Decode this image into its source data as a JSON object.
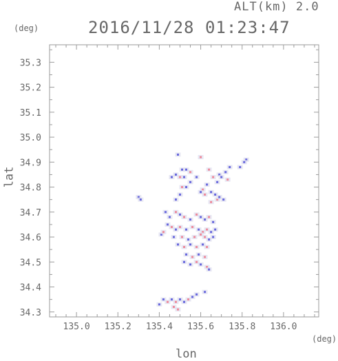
{
  "header": {
    "altitude_label": "ALT(km) 2.0",
    "timestamp": "2016/11/28 01:23:47"
  },
  "axis_units": {
    "y_unit": "(deg)",
    "x_unit": "(deg)"
  },
  "colors": {
    "frame": "#9a9a9a",
    "text": "#666666",
    "positive": "#ee8899",
    "negative": "#6666dd",
    "neutral": "#ddddee"
  },
  "chart_data": {
    "type": "scatter",
    "xlabel": "lon",
    "ylabel": "lat",
    "xlim": [
      134.87,
      136.17
    ],
    "ylim": [
      34.28,
      35.37
    ],
    "x_ticks": [
      "135.0",
      "135.2",
      "135.4",
      "135.6",
      "135.8",
      "136.0"
    ],
    "x_tick_values": [
      135.0,
      135.2,
      135.4,
      135.6,
      135.8,
      136.0
    ],
    "y_ticks": [
      "34.3",
      "34.4",
      "34.5",
      "34.6",
      "34.7",
      "34.8",
      "34.9",
      "35.0",
      "35.1",
      "35.2",
      "35.3"
    ],
    "y_tick_values": [
      34.3,
      34.4,
      34.5,
      34.6,
      34.7,
      34.8,
      34.9,
      35.0,
      35.1,
      35.2,
      35.3
    ],
    "grid": false,
    "points": [
      {
        "x": 135.49,
        "y": 34.93,
        "c": "neg"
      },
      {
        "x": 135.6,
        "y": 34.92,
        "c": "pos"
      },
      {
        "x": 135.82,
        "y": 34.91,
        "c": "neg"
      },
      {
        "x": 135.81,
        "y": 34.9,
        "c": "neg"
      },
      {
        "x": 135.79,
        "y": 34.88,
        "c": "neg"
      },
      {
        "x": 135.74,
        "y": 34.88,
        "c": "neg"
      },
      {
        "x": 135.51,
        "y": 34.87,
        "c": "neg"
      },
      {
        "x": 135.53,
        "y": 34.87,
        "c": "neg"
      },
      {
        "x": 135.55,
        "y": 34.86,
        "c": "pos"
      },
      {
        "x": 135.64,
        "y": 34.87,
        "c": "pos"
      },
      {
        "x": 135.48,
        "y": 34.85,
        "c": "neg"
      },
      {
        "x": 135.46,
        "y": 34.84,
        "c": "neg"
      },
      {
        "x": 135.5,
        "y": 34.84,
        "c": "pos"
      },
      {
        "x": 135.52,
        "y": 34.84,
        "c": "neg"
      },
      {
        "x": 135.58,
        "y": 34.84,
        "c": "neg"
      },
      {
        "x": 135.66,
        "y": 34.84,
        "c": "pos"
      },
      {
        "x": 135.69,
        "y": 34.85,
        "c": "neg"
      },
      {
        "x": 135.7,
        "y": 34.84,
        "c": "neg"
      },
      {
        "x": 135.72,
        "y": 34.86,
        "c": "neg"
      },
      {
        "x": 135.73,
        "y": 34.83,
        "c": "pos"
      },
      {
        "x": 135.68,
        "y": 34.82,
        "c": "neg"
      },
      {
        "x": 135.63,
        "y": 34.81,
        "c": "neg"
      },
      {
        "x": 135.61,
        "y": 34.79,
        "c": "pos"
      },
      {
        "x": 135.6,
        "y": 34.78,
        "c": "neg"
      },
      {
        "x": 135.62,
        "y": 34.77,
        "c": "pos"
      },
      {
        "x": 135.65,
        "y": 34.78,
        "c": "neg"
      },
      {
        "x": 135.67,
        "y": 34.77,
        "c": "neg"
      },
      {
        "x": 135.68,
        "y": 34.75,
        "c": "pos"
      },
      {
        "x": 135.69,
        "y": 34.76,
        "c": "neg"
      },
      {
        "x": 135.65,
        "y": 34.74,
        "c": "pos"
      },
      {
        "x": 135.71,
        "y": 34.75,
        "c": "neg"
      },
      {
        "x": 135.55,
        "y": 34.82,
        "c": "neg"
      },
      {
        "x": 135.53,
        "y": 34.8,
        "c": "neg"
      },
      {
        "x": 135.51,
        "y": 34.8,
        "c": "pos"
      },
      {
        "x": 135.5,
        "y": 34.77,
        "c": "neg"
      },
      {
        "x": 135.48,
        "y": 34.75,
        "c": "neg"
      },
      {
        "x": 135.3,
        "y": 34.76,
        "c": "neg"
      },
      {
        "x": 135.31,
        "y": 34.75,
        "c": "neg"
      },
      {
        "x": 135.43,
        "y": 34.7,
        "c": "neg"
      },
      {
        "x": 135.45,
        "y": 34.68,
        "c": "neg"
      },
      {
        "x": 135.48,
        "y": 34.7,
        "c": "pos"
      },
      {
        "x": 135.5,
        "y": 34.69,
        "c": "neg"
      },
      {
        "x": 135.52,
        "y": 34.68,
        "c": "pos"
      },
      {
        "x": 135.55,
        "y": 34.67,
        "c": "neg"
      },
      {
        "x": 135.58,
        "y": 34.69,
        "c": "pos"
      },
      {
        "x": 135.6,
        "y": 34.68,
        "c": "neg"
      },
      {
        "x": 135.62,
        "y": 34.67,
        "c": "neg"
      },
      {
        "x": 135.64,
        "y": 34.68,
        "c": "pos"
      },
      {
        "x": 135.66,
        "y": 34.66,
        "c": "neg"
      },
      {
        "x": 135.44,
        "y": 34.65,
        "c": "neg"
      },
      {
        "x": 135.46,
        "y": 34.64,
        "c": "pos"
      },
      {
        "x": 135.48,
        "y": 34.63,
        "c": "neg"
      },
      {
        "x": 135.5,
        "y": 34.64,
        "c": "pos"
      },
      {
        "x": 135.53,
        "y": 34.63,
        "c": "neg"
      },
      {
        "x": 135.56,
        "y": 34.64,
        "c": "pos"
      },
      {
        "x": 135.59,
        "y": 34.63,
        "c": "neg"
      },
      {
        "x": 135.61,
        "y": 34.62,
        "c": "pos"
      },
      {
        "x": 135.63,
        "y": 34.63,
        "c": "pos"
      },
      {
        "x": 135.65,
        "y": 34.62,
        "c": "neg"
      },
      {
        "x": 135.67,
        "y": 34.63,
        "c": "neg"
      },
      {
        "x": 135.41,
        "y": 34.61,
        "c": "neg"
      },
      {
        "x": 135.42,
        "y": 34.62,
        "c": "pos"
      },
      {
        "x": 135.47,
        "y": 34.6,
        "c": "neg"
      },
      {
        "x": 135.51,
        "y": 34.6,
        "c": "pos"
      },
      {
        "x": 135.54,
        "y": 34.59,
        "c": "neg"
      },
      {
        "x": 135.57,
        "y": 34.6,
        "c": "pos"
      },
      {
        "x": 135.6,
        "y": 34.61,
        "c": "pos"
      },
      {
        "x": 135.62,
        "y": 34.6,
        "c": "pos"
      },
      {
        "x": 135.64,
        "y": 34.59,
        "c": "neg"
      },
      {
        "x": 135.66,
        "y": 34.6,
        "c": "neg"
      },
      {
        "x": 135.49,
        "y": 34.57,
        "c": "neg"
      },
      {
        "x": 135.52,
        "y": 34.56,
        "c": "pos"
      },
      {
        "x": 135.55,
        "y": 34.57,
        "c": "neg"
      },
      {
        "x": 135.58,
        "y": 34.56,
        "c": "pos"
      },
      {
        "x": 135.61,
        "y": 34.57,
        "c": "neg"
      },
      {
        "x": 135.63,
        "y": 34.56,
        "c": "pos"
      },
      {
        "x": 135.53,
        "y": 34.53,
        "c": "neg"
      },
      {
        "x": 135.56,
        "y": 34.52,
        "c": "pos"
      },
      {
        "x": 135.59,
        "y": 34.53,
        "c": "neg"
      },
      {
        "x": 135.62,
        "y": 34.52,
        "c": "pos"
      },
      {
        "x": 135.52,
        "y": 34.5,
        "c": "neg"
      },
      {
        "x": 135.55,
        "y": 34.49,
        "c": "neg"
      },
      {
        "x": 135.58,
        "y": 34.5,
        "c": "pos"
      },
      {
        "x": 135.6,
        "y": 34.49,
        "c": "neg"
      },
      {
        "x": 135.63,
        "y": 34.48,
        "c": "pos"
      },
      {
        "x": 135.64,
        "y": 34.47,
        "c": "neg"
      },
      {
        "x": 135.4,
        "y": 34.33,
        "c": "neg"
      },
      {
        "x": 135.42,
        "y": 34.35,
        "c": "neg"
      },
      {
        "x": 135.44,
        "y": 34.34,
        "c": "pos"
      },
      {
        "x": 135.46,
        "y": 34.35,
        "c": "neg"
      },
      {
        "x": 135.48,
        "y": 34.34,
        "c": "pos"
      },
      {
        "x": 135.5,
        "y": 34.35,
        "c": "neg"
      },
      {
        "x": 135.52,
        "y": 34.34,
        "c": "neg"
      },
      {
        "x": 135.54,
        "y": 34.35,
        "c": "pos"
      },
      {
        "x": 135.56,
        "y": 34.36,
        "c": "neg"
      },
      {
        "x": 135.47,
        "y": 34.32,
        "c": "pos"
      },
      {
        "x": 135.49,
        "y": 34.31,
        "c": "pos"
      },
      {
        "x": 135.58,
        "y": 34.37,
        "c": "neg"
      },
      {
        "x": 135.62,
        "y": 34.38,
        "c": "neg"
      }
    ]
  }
}
